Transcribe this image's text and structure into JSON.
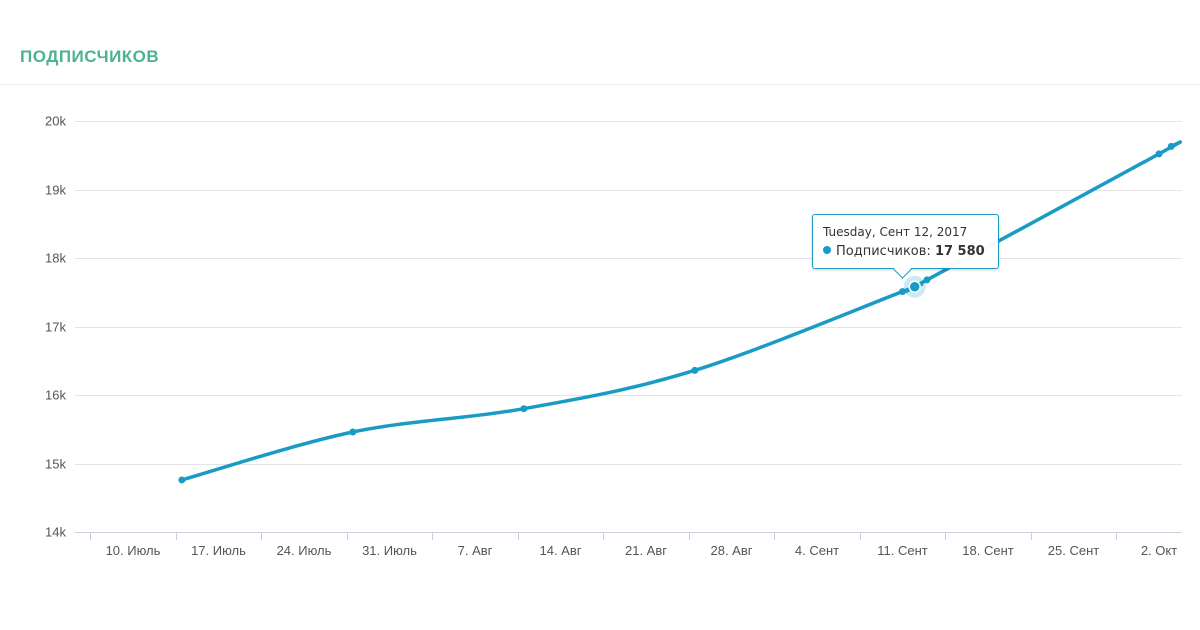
{
  "header": {
    "title": "ПОДПИСЧИКОВ"
  },
  "colors": {
    "title": "#4cb38f",
    "series": "#1a9bc6"
  },
  "tooltip": {
    "date": "Tuesday, Сент 12, 2017",
    "series_label": "Подписчиков:",
    "value": "17 580"
  },
  "chart_data": {
    "type": "line",
    "title": "ПОДПИСЧИКОВ",
    "xlabel": "",
    "ylabel": "",
    "x_tick_labels": [
      "10. Июль",
      "17. Июль",
      "24. Июль",
      "31. Июль",
      "7. Авг",
      "14. Авг",
      "21. Авг",
      "28. Авг",
      "4. Сент",
      "11. Сент",
      "18. Сент",
      "25. Сент",
      "2. Окт"
    ],
    "x_ticks": [
      "2017-07-10",
      "2017-07-17",
      "2017-07-24",
      "2017-07-31",
      "2017-08-07",
      "2017-08-14",
      "2017-08-21",
      "2017-08-28",
      "2017-09-04",
      "2017-09-11",
      "2017-09-18",
      "2017-09-25",
      "2017-10-02"
    ],
    "y_tick_labels": [
      "14k",
      "15k",
      "16k",
      "17k",
      "18k",
      "19k",
      "20k"
    ],
    "y_ticks": [
      14000,
      15000,
      16000,
      17000,
      18000,
      19000,
      20000
    ],
    "ylim": [
      14000,
      20000
    ],
    "grid": true,
    "legend": "none",
    "series": [
      {
        "color": "#1a9bc6",
        "points": [
          {
            "x": "2017-07-14",
            "y": 14760
          },
          {
            "x": "2017-07-28",
            "y": 15460
          },
          {
            "x": "2017-08-11",
            "y": 15800
          },
          {
            "x": "2017-08-25",
            "y": 16360
          },
          {
            "x": "2017-09-11",
            "y": 17510
          },
          {
            "x": "2017-09-12",
            "y": 17580
          },
          {
            "x": "2017-09-13",
            "y": 17680
          },
          {
            "x": "2017-10-02",
            "y": 19520
          },
          {
            "x": "2017-10-03",
            "y": 19630
          }
        ]
      }
    ],
    "highlight": {
      "x": "2017-09-12",
      "y": 17580
    }
  }
}
